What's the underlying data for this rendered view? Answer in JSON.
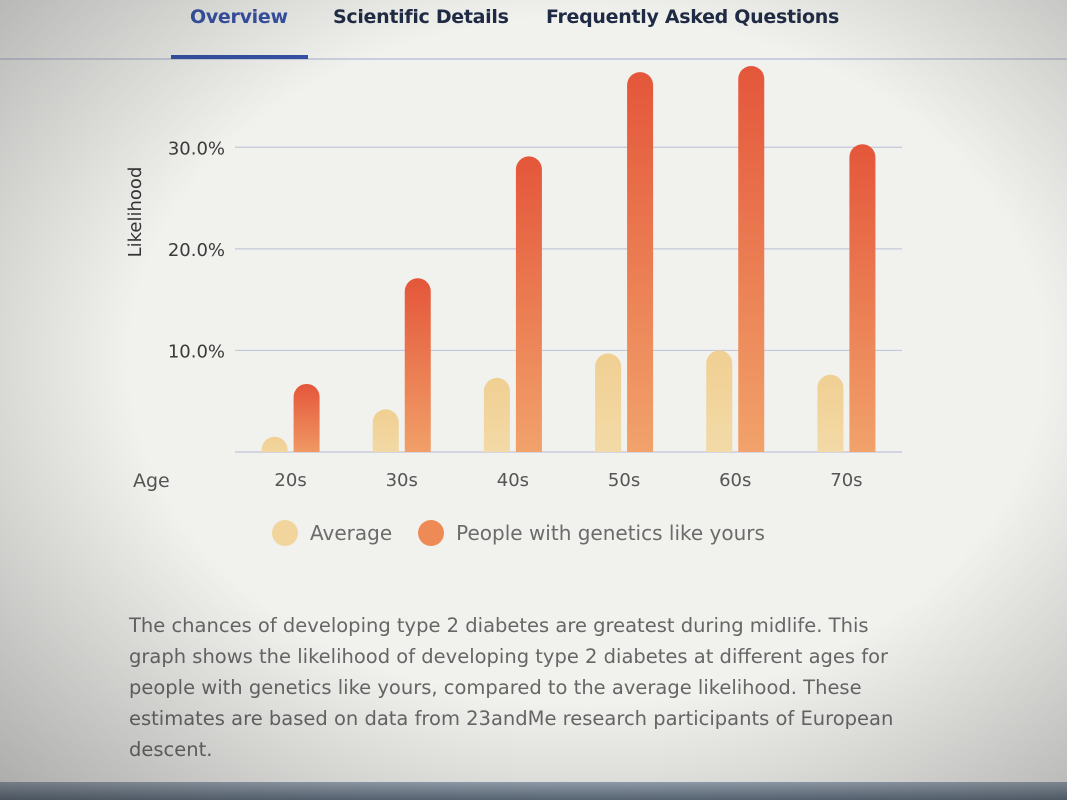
{
  "tabs": [
    {
      "label": "Overview",
      "active": true
    },
    {
      "label": "Scientific Details",
      "active": false
    },
    {
      "label": "Frequently Asked Questions",
      "active": false
    }
  ],
  "colors": {
    "average": "#f2d59c",
    "genetics": "#e8693f",
    "genetics_light": "#f2a06a",
    "accent": "#3451a5"
  },
  "chart_data": {
    "type": "bar",
    "title": "",
    "xlabel": "Age",
    "ylabel": "Likelihood",
    "ylim": [
      0,
      38
    ],
    "yticks": [
      10,
      20,
      30
    ],
    "ytick_labels": [
      "10.0%",
      "20.0%",
      "30.0%"
    ],
    "categories": [
      "20s",
      "30s",
      "40s",
      "50s",
      "60s",
      "70s"
    ],
    "series": [
      {
        "name": "Average",
        "values": [
          1.5,
          4.2,
          7.3,
          9.7,
          10.0,
          7.6
        ]
      },
      {
        "name": "People with genetics like yours",
        "values": [
          6.7,
          17.1,
          29.1,
          37.4,
          38.0,
          30.3
        ]
      }
    ]
  },
  "legend": {
    "average_label": "Average",
    "genetics_label": "People with genetics like yours"
  },
  "description": "The chances of developing type 2 diabetes are greatest during midlife. This graph shows the likelihood of developing type 2 diabetes at different ages for people with genetics like yours, compared to the average likelihood. These estimates are based on data from 23andMe research participants of European descent."
}
